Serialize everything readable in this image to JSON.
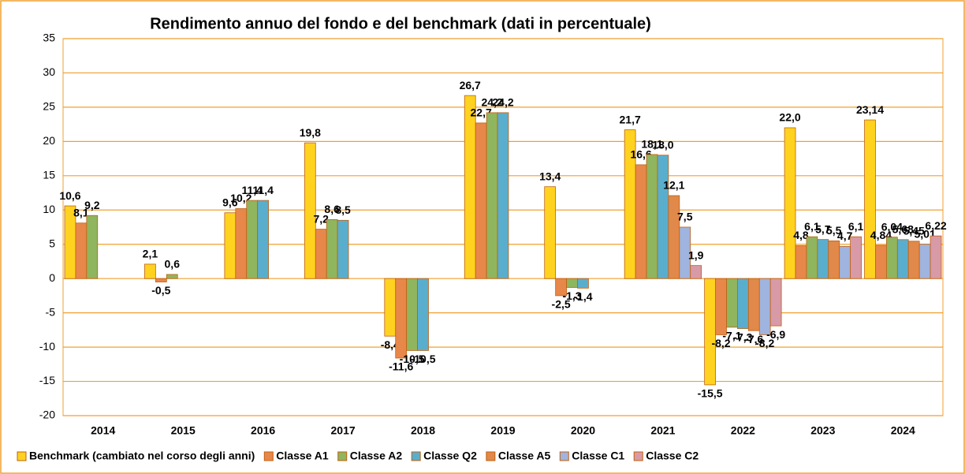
{
  "chart_data": {
    "type": "bar",
    "title": "Rendimento annuo del fondo e del benchmark (dati in percentuale)",
    "categories": [
      "2014",
      "2015",
      "2016",
      "2017",
      "2018",
      "2019",
      "2020",
      "2021",
      "2022",
      "2023",
      "2024"
    ],
    "series": [
      {
        "name": "Benchmark (cambiato nel corso degli anni)",
        "color": "#ffd21f",
        "values": [
          10.6,
          2.1,
          9.6,
          19.8,
          -8.4,
          26.7,
          13.4,
          21.7,
          -15.5,
          22.0,
          23.14
        ],
        "value_labels": [
          "10,6",
          "2,1",
          "9,6",
          "19,8",
          "-8,4",
          "26,7",
          "13,4",
          "21,7",
          "-15,5",
          "22,0",
          "23,14"
        ]
      },
      {
        "name": "Classe A1",
        "color": "#e8874a",
        "values": [
          8.1,
          -0.5,
          10.2,
          7.2,
          -11.6,
          22.7,
          -2.5,
          16.6,
          -8.2,
          4.8,
          4.84
        ],
        "value_labels": [
          "8,1",
          "-0,5",
          "10,2",
          "7,2",
          "-11,6",
          "22,7",
          "-2,5",
          "16,6",
          "-8,2",
          "4,8",
          "4,84"
        ]
      },
      {
        "name": "Classe A2",
        "color": "#8fb55e",
        "values": [
          9.2,
          0.6,
          11.4,
          8.6,
          -10.5,
          24.2,
          -1.3,
          18.1,
          -7.1,
          6.1,
          6.04
        ],
        "value_labels": [
          "9,2",
          "0,6",
          "11,4",
          "8,6",
          "-10,5",
          "24,2",
          "-1,3",
          "18,1",
          "-7,1",
          "6,1",
          "6,04"
        ]
      },
      {
        "name": "Classe Q2",
        "color": "#5aaecd",
        "values": [
          null,
          null,
          11.4,
          8.5,
          -10.5,
          24.2,
          -1.4,
          18.0,
          -7.3,
          5.7,
          5.68
        ],
        "value_labels": [
          null,
          null,
          "11,4",
          "8,5",
          "-10,5",
          "24,2",
          "-1,4",
          "18,0",
          "-7,3",
          "5,7",
          "5,68"
        ]
      },
      {
        "name": "Classe A5",
        "color": "#e0894a",
        "values": [
          null,
          null,
          null,
          null,
          null,
          null,
          null,
          12.1,
          -7.6,
          5.5,
          5.45
        ],
        "value_labels": [
          null,
          null,
          null,
          null,
          null,
          null,
          null,
          "12,1",
          "-7,6",
          "5,5",
          "5,45"
        ]
      },
      {
        "name": "Classe C1",
        "color": "#9fb4de",
        "values": [
          null,
          null,
          null,
          null,
          null,
          null,
          null,
          7.5,
          -8.2,
          4.7,
          5.01
        ],
        "value_labels": [
          null,
          null,
          null,
          null,
          null,
          null,
          null,
          "7,5",
          "-8,2",
          "4,7",
          "5,01"
        ]
      },
      {
        "name": "Classe C2",
        "color": "#d89aa6",
        "values": [
          null,
          null,
          null,
          null,
          null,
          null,
          null,
          1.9,
          -6.9,
          6.1,
          6.22
        ],
        "value_labels": [
          null,
          null,
          null,
          null,
          null,
          null,
          null,
          "1,9",
          "-6,9",
          "6,1",
          "6,22"
        ]
      }
    ],
    "ylim": [
      -20,
      35
    ],
    "yticks": [
      -20,
      -15,
      -10,
      -5,
      0,
      5,
      10,
      15,
      20,
      25,
      30,
      35
    ],
    "grid": true
  }
}
